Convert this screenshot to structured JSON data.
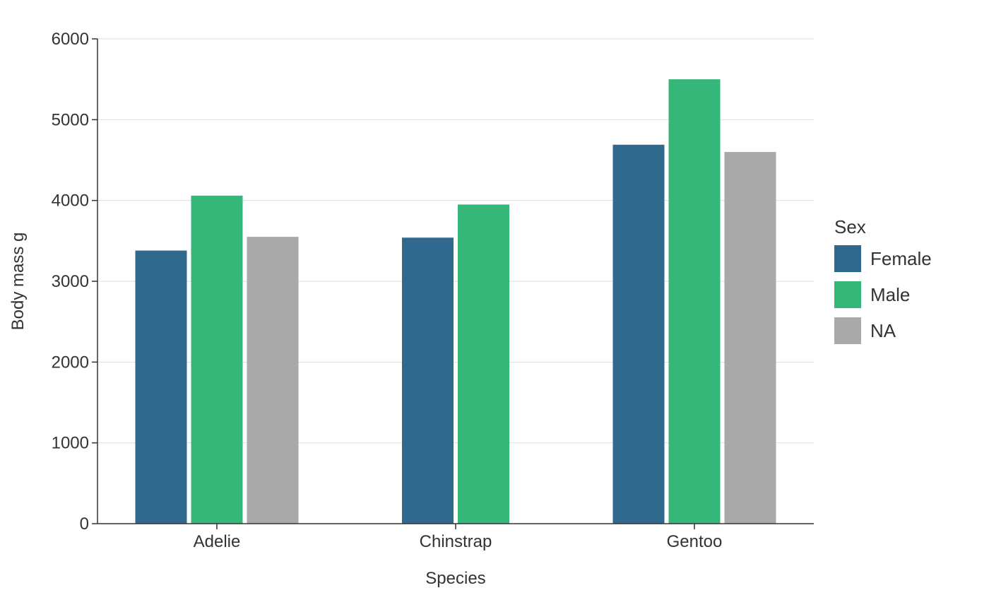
{
  "chart_data": {
    "type": "bar",
    "title": "",
    "xlabel": "Species",
    "ylabel": "Body mass g",
    "categories": [
      "Adelie",
      "Chinstrap",
      "Gentoo"
    ],
    "ylim": [
      0,
      6000
    ],
    "yticks": [
      0,
      1000,
      2000,
      3000,
      4000,
      5000,
      6000
    ],
    "grid": "horizontal",
    "legend": {
      "title": "Sex",
      "placement": "right"
    },
    "series": [
      {
        "name": "Female",
        "color": "#31688e",
        "values": [
          3380,
          3540,
          4690
        ]
      },
      {
        "name": "Male",
        "color": "#35b779",
        "values": [
          4060,
          3950,
          5500
        ]
      },
      {
        "name": "NA",
        "color": "#a9a9a9",
        "values": [
          3550,
          null,
          4600
        ]
      }
    ]
  }
}
